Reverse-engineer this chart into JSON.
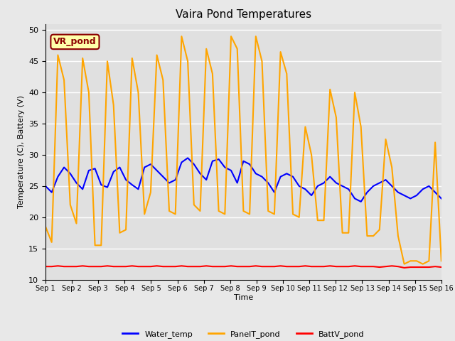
{
  "title": "Vaira Pond Temperatures",
  "xlabel": "Time",
  "ylabel": "Temperature (C), Battery (V)",
  "ylim": [
    10,
    51
  ],
  "yticks": [
    10,
    15,
    20,
    25,
    30,
    35,
    40,
    45,
    50
  ],
  "background_color": "#e8e8e8",
  "plot_bg_color": "#e0e0e0",
  "annotation_text": "VR_pond",
  "annotation_bg": "#ffffaa",
  "annotation_border": "#8B0000",
  "water_temp": [
    25.0,
    24.0,
    26.5,
    28.0,
    27.0,
    25.5,
    24.5,
    27.5,
    27.8,
    25.2,
    24.8,
    27.3,
    28.0,
    26.0,
    25.2,
    24.5,
    28.0,
    28.5,
    27.5,
    26.5,
    25.5,
    26.0,
    28.8,
    29.5,
    28.5,
    27.0,
    26.0,
    29.0,
    29.3,
    28.0,
    27.5,
    25.5,
    29.0,
    28.5,
    27.0,
    26.5,
    25.5,
    24.0,
    26.5,
    27.0,
    26.5,
    25.0,
    24.5,
    23.5,
    25.0,
    25.5,
    26.5,
    25.5,
    25.0,
    24.5,
    23.0,
    22.5,
    24.0,
    25.0,
    25.5,
    26.0,
    25.0,
    24.0,
    23.5,
    23.0,
    23.5,
    24.5,
    25.0,
    24.0,
    23.0
  ],
  "panel_temp": [
    18.5,
    16.0,
    46.0,
    42.0,
    22.0,
    19.0,
    45.5,
    40.0,
    15.5,
    15.5,
    45.0,
    38.0,
    17.5,
    18.0,
    45.5,
    40.0,
    20.5,
    24.0,
    46.0,
    42.0,
    21.0,
    20.5,
    49.0,
    45.0,
    22.0,
    21.0,
    47.0,
    43.0,
    21.0,
    20.5,
    49.0,
    47.0,
    21.0,
    20.5,
    49.0,
    45.0,
    21.0,
    20.5,
    46.5,
    43.0,
    20.5,
    20.0,
    34.5,
    30.0,
    19.5,
    19.5,
    40.5,
    36.0,
    17.5,
    17.5,
    40.0,
    34.5,
    17.0,
    17.0,
    18.0,
    32.5,
    28.0,
    17.0,
    12.5,
    13.0,
    13.0,
    12.5,
    13.0,
    32.0,
    13.0
  ],
  "batt_v": [
    12.1,
    12.1,
    12.2,
    12.1,
    12.1,
    12.1,
    12.2,
    12.1,
    12.1,
    12.1,
    12.2,
    12.1,
    12.1,
    12.1,
    12.2,
    12.1,
    12.1,
    12.1,
    12.2,
    12.1,
    12.1,
    12.1,
    12.2,
    12.1,
    12.1,
    12.1,
    12.2,
    12.1,
    12.1,
    12.1,
    12.2,
    12.1,
    12.1,
    12.1,
    12.2,
    12.1,
    12.1,
    12.1,
    12.2,
    12.1,
    12.1,
    12.1,
    12.2,
    12.1,
    12.1,
    12.1,
    12.2,
    12.1,
    12.1,
    12.1,
    12.2,
    12.1,
    12.1,
    12.1,
    12.0,
    12.1,
    12.2,
    12.1,
    11.9,
    12.0,
    12.0,
    12.0,
    12.0,
    12.1,
    12.0
  ],
  "xtick_labels": [
    "Sep 1",
    "Sep 2",
    "Sep 3",
    "Sep 4",
    "Sep 5",
    "Sep 6",
    "Sep 7",
    "Sep 8",
    "Sep 9",
    "Sep 10",
    "Sep 11",
    "Sep 12",
    "Sep 13",
    "Sep 14",
    "Sep 15",
    "Sep 16"
  ],
  "grid_color": "#ffffff",
  "line_width": 1.5
}
